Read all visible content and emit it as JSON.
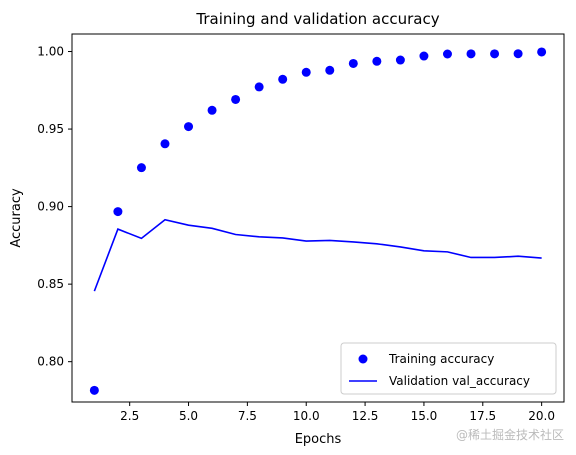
{
  "chart_data": {
    "type": "line",
    "title": "Training and validation accuracy",
    "xlabel": "Epochs",
    "ylabel": "Accuracy",
    "xlim": [
      0.05,
      20.95
    ],
    "ylim": [
      0.774,
      1.0113
    ],
    "xticks": [
      2.5,
      5.0,
      7.5,
      10.0,
      12.5,
      15.0,
      17.5,
      20.0
    ],
    "yticks": [
      0.8,
      0.85,
      0.9,
      0.95,
      1.0
    ],
    "grid": false,
    "legend_position": "lower-right",
    "series": [
      {
        "name": "Training accuracy",
        "style": "markers",
        "color": "#0000ff",
        "x": [
          1,
          2,
          3,
          4,
          5,
          6,
          7,
          8,
          9,
          10,
          11,
          12,
          13,
          14,
          15,
          16,
          17,
          18,
          19,
          20
        ],
        "y": [
          0.7815,
          0.8968,
          0.9251,
          0.9405,
          0.9516,
          0.9621,
          0.9691,
          0.9772,
          0.9821,
          0.9866,
          0.9879,
          0.9923,
          0.9937,
          0.9945,
          0.9971,
          0.9984,
          0.9985,
          0.9985,
          0.9986,
          0.9997
        ]
      },
      {
        "name": "Validation val_accuracy",
        "style": "line",
        "color": "#0000ff",
        "x": [
          1,
          2,
          3,
          4,
          5,
          6,
          7,
          8,
          9,
          10,
          11,
          12,
          13,
          14,
          15,
          16,
          17,
          18,
          19,
          20
        ],
        "y": [
          0.8455,
          0.8855,
          0.8795,
          0.8915,
          0.888,
          0.886,
          0.882,
          0.8805,
          0.8798,
          0.8778,
          0.8782,
          0.8772,
          0.876,
          0.874,
          0.8715,
          0.8708,
          0.8672,
          0.8672,
          0.868,
          0.8668
        ]
      }
    ]
  },
  "watermark": "@稀土掘金技术社区"
}
